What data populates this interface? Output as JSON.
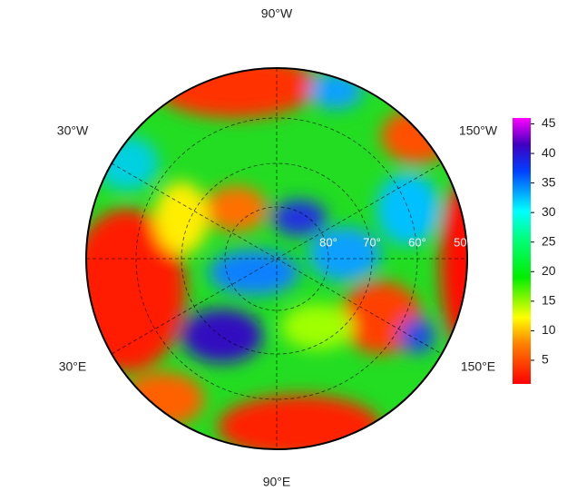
{
  "map": {
    "longitude_labels": [
      "90°W",
      "30°W",
      "150°W",
      "30°E",
      "150°E",
      "90°E"
    ],
    "latitude_labels": [
      "80°",
      "70°",
      "60°",
      "50°"
    ]
  },
  "colorbar": {
    "range": [
      1,
      46
    ],
    "ticks": [
      5,
      10,
      15,
      20,
      25,
      30,
      35,
      40,
      45
    ]
  }
}
